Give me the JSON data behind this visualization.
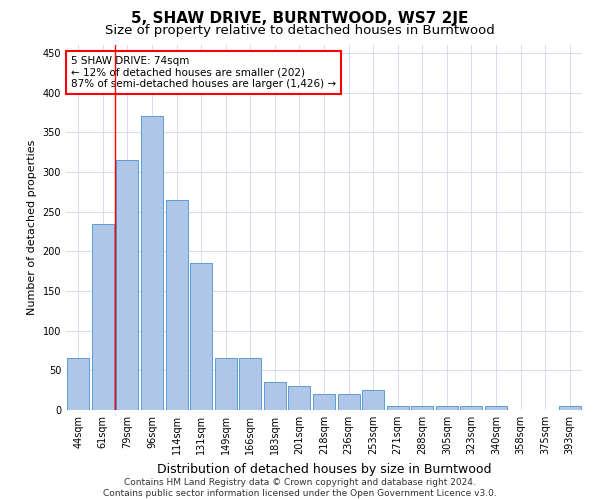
{
  "title": "5, SHAW DRIVE, BURNTWOOD, WS7 2JE",
  "subtitle": "Size of property relative to detached houses in Burntwood",
  "xlabel": "Distribution of detached houses by size in Burntwood",
  "ylabel": "Number of detached properties",
  "categories": [
    "44sqm",
    "61sqm",
    "79sqm",
    "96sqm",
    "114sqm",
    "131sqm",
    "149sqm",
    "166sqm",
    "183sqm",
    "201sqm",
    "218sqm",
    "236sqm",
    "253sqm",
    "271sqm",
    "288sqm",
    "305sqm",
    "323sqm",
    "340sqm",
    "358sqm",
    "375sqm",
    "393sqm"
  ],
  "values": [
    65,
    235,
    315,
    370,
    265,
    185,
    65,
    65,
    35,
    30,
    20,
    20,
    25,
    5,
    5,
    5,
    5,
    5,
    0,
    0,
    5
  ],
  "bar_color": "#aec6e8",
  "bar_edge_color": "#5b9bd5",
  "grid_color": "#d0d8e8",
  "annotation_line1": "5 SHAW DRIVE: 74sqm",
  "annotation_line2": "← 12% of detached houses are smaller (202)",
  "annotation_line3": "87% of semi-detached houses are larger (1,426) →",
  "redline_x": 1.5,
  "ylim": [
    0,
    460
  ],
  "yticks": [
    0,
    50,
    100,
    150,
    200,
    250,
    300,
    350,
    400,
    450
  ],
  "footer_line1": "Contains HM Land Registry data © Crown copyright and database right 2024.",
  "footer_line2": "Contains public sector information licensed under the Open Government Licence v3.0.",
  "title_fontsize": 11,
  "subtitle_fontsize": 9.5,
  "xlabel_fontsize": 9,
  "ylabel_fontsize": 8,
  "tick_fontsize": 7,
  "annotation_fontsize": 7.5,
  "footer_fontsize": 6.5
}
